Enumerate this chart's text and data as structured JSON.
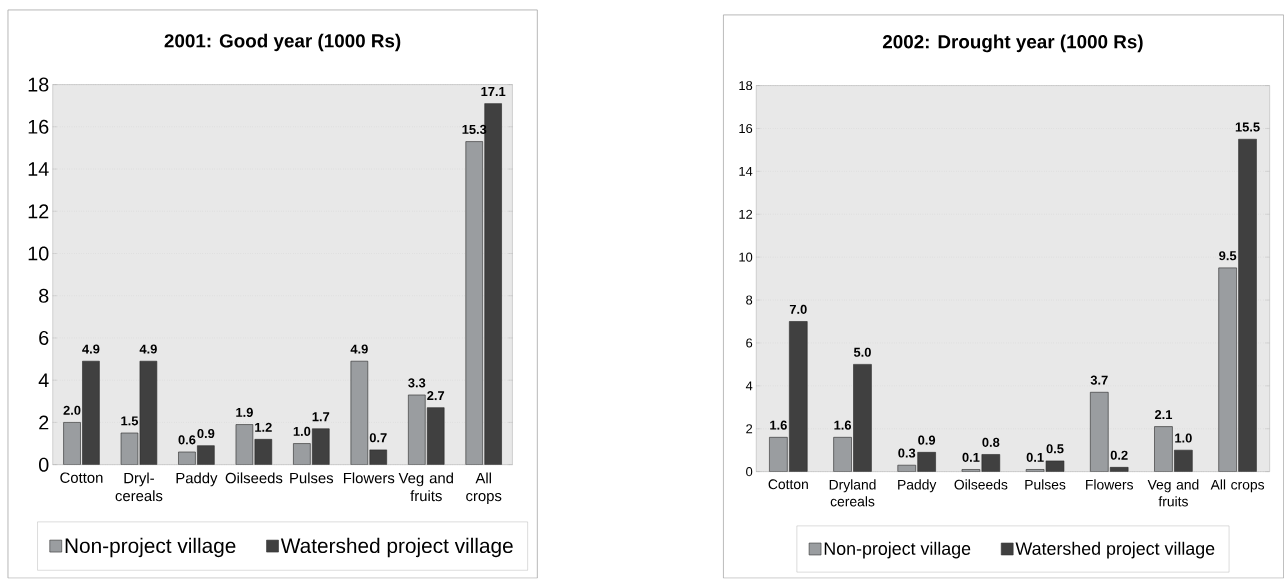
{
  "chart_data": [
    {
      "type": "bar",
      "title": "2001: Good year (1000 Rs)",
      "categories": [
        "Cotton",
        "Dryl- cereals",
        "Paddy",
        "Oilseeds",
        "Pulses",
        "Flowers",
        "Veg and fruits",
        "All crops"
      ],
      "series": [
        {
          "name": "Non-project village",
          "color": "#9a9da0",
          "values": [
            2.0,
            1.5,
            0.6,
            1.9,
            1.0,
            4.9,
            3.3,
            15.3
          ],
          "value_labels": [
            "2.0",
            "1.5",
            "0.6",
            "1.9",
            "1.0",
            "4.9",
            "3.3",
            "15.3"
          ]
        },
        {
          "name": "Watershed project village",
          "color": "#404040",
          "values": [
            4.9,
            4.9,
            0.9,
            1.2,
            1.7,
            0.7,
            2.7,
            17.1
          ],
          "value_labels": [
            "4.9",
            "4.9",
            "0.9",
            "1.2",
            "1.7",
            "0.7",
            "2.7",
            "17.1"
          ]
        }
      ],
      "ylim": [
        0,
        18
      ],
      "yticks": [
        0,
        2,
        4,
        6,
        8,
        10,
        12,
        14,
        16,
        18
      ],
      "grid": "y",
      "legend": "bottom"
    },
    {
      "type": "bar",
      "title": "2002: Drought year (1000 Rs)",
      "categories": [
        "Cotton",
        "Dryland cereals",
        "Paddy",
        "Oilseeds",
        "Pulses",
        "Flowers",
        "Veg and fruits",
        "All crops"
      ],
      "series": [
        {
          "name": "Non-project village",
          "color": "#9a9da0",
          "values": [
            1.6,
            1.6,
            0.3,
            0.1,
            0.1,
            3.7,
            2.1,
            9.5
          ],
          "value_labels": [
            "1.6",
            "1.6",
            "0.3",
            "0.1",
            "0.1",
            "3.7",
            "2.1",
            "9.5"
          ]
        },
        {
          "name": "Watershed project village",
          "color": "#404040",
          "values": [
            7.0,
            5.0,
            0.9,
            0.8,
            0.5,
            0.2,
            1.0,
            15.5
          ],
          "value_labels": [
            "7.0",
            "5.0",
            "0.9",
            "0.8",
            "0.5",
            "0.2",
            "1.0",
            "15.5"
          ]
        }
      ],
      "ylim": [
        0,
        18
      ],
      "yticks": [
        0,
        2,
        4,
        6,
        8,
        10,
        12,
        14,
        16,
        18
      ],
      "grid": "y",
      "legend": "bottom"
    }
  ]
}
